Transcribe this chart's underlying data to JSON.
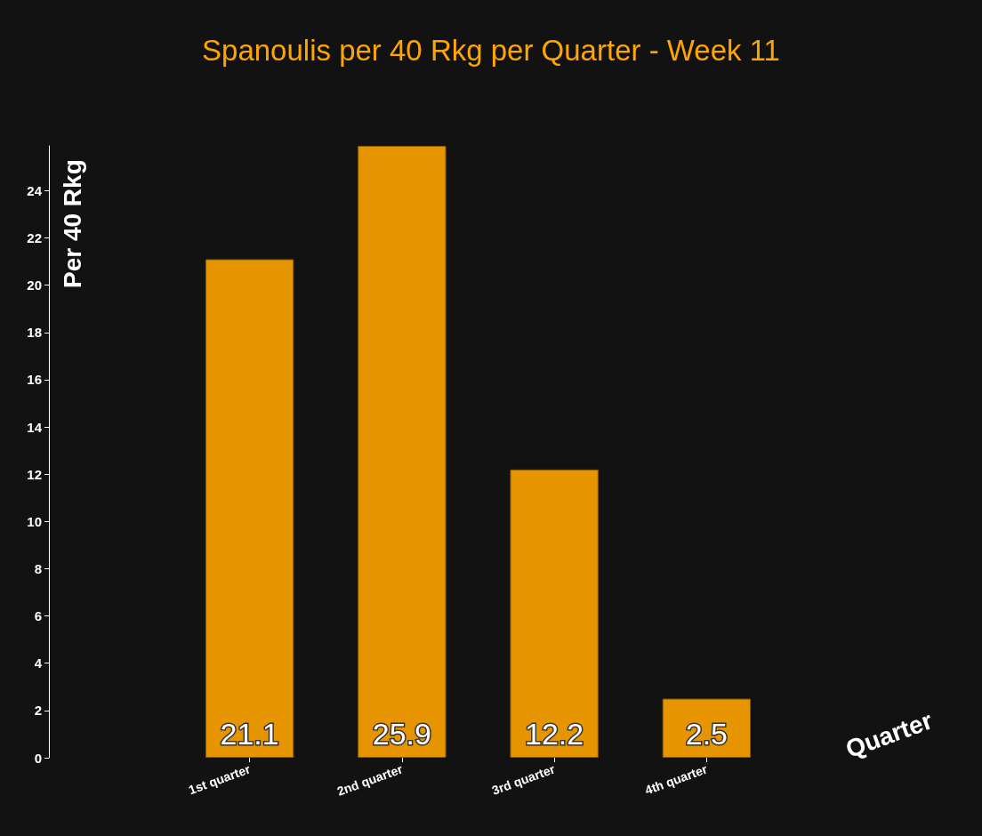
{
  "chart_data": {
    "type": "bar",
    "title": "Spanoulis per 40 Rkg per Quarter - Week 11",
    "xlabel": "Quarter",
    "ylabel": "Per 40 Rkg",
    "categories": [
      "1st quarter",
      "2nd quarter",
      "3rd quarter",
      "4th quarter"
    ],
    "values": [
      21.1,
      25.9,
      12.2,
      2.5
    ],
    "color": "#e69500",
    "ylim": [
      0,
      25.9
    ],
    "yticks": [
      0,
      2,
      4,
      6,
      8,
      10,
      12,
      14,
      16,
      18,
      20,
      22,
      24
    ],
    "data_labels": true,
    "grid": false
  }
}
